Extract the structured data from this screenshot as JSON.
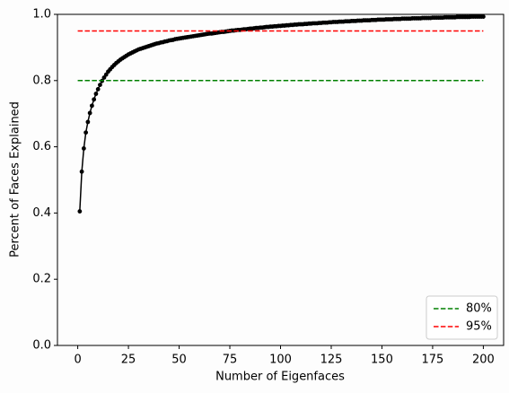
{
  "chart_data": {
    "type": "line",
    "xlabel": "Number of Eigenfaces",
    "ylabel": "Percent of Faces Explained",
    "xlim": [
      -10,
      210
    ],
    "ylim": [
      0,
      1
    ],
    "xticks": [
      0,
      25,
      50,
      75,
      100,
      125,
      150,
      175,
      200
    ],
    "yticks": [
      {
        "value": 0,
        "label": "0.0"
      },
      0.2,
      0.4,
      0.6,
      0.8,
      {
        "value": 1,
        "label": "1.0"
      }
    ],
    "legend": "lower right",
    "series": [
      {
        "color": "#000000",
        "style": "solid",
        "markers": true,
        "x": [
          1,
          2,
          3,
          4,
          5,
          6,
          7,
          8,
          9,
          10,
          11,
          12,
          13,
          14,
          15,
          16,
          17,
          18,
          19,
          20,
          21,
          22,
          23,
          24,
          25,
          26,
          27,
          28,
          29,
          30,
          31,
          32,
          33,
          34,
          35,
          36,
          37,
          38,
          39,
          40,
          41,
          42,
          43,
          44,
          45,
          46,
          47,
          48,
          49,
          50,
          51,
          52,
          53,
          54,
          55,
          56,
          57,
          58,
          59,
          60,
          61,
          62,
          63,
          64,
          65,
          66,
          67,
          68,
          69,
          70,
          71,
          72,
          73,
          74,
          75,
          76,
          77,
          78,
          79,
          80,
          81,
          82,
          83,
          84,
          85,
          86,
          87,
          88,
          89,
          90,
          91,
          92,
          93,
          94,
          95,
          96,
          97,
          98,
          99,
          100,
          101,
          102,
          103,
          104,
          105,
          106,
          107,
          108,
          109,
          110,
          111,
          112,
          113,
          114,
          115,
          116,
          117,
          118,
          119,
          120,
          121,
          122,
          123,
          124,
          125,
          126,
          127,
          128,
          129,
          130,
          131,
          132,
          133,
          134,
          135,
          136,
          137,
          138,
          139,
          140,
          141,
          142,
          143,
          144,
          145,
          146,
          147,
          148,
          149,
          150,
          151,
          152,
          153,
          154,
          155,
          156,
          157,
          158,
          159,
          160,
          161,
          162,
          163,
          164,
          165,
          166,
          167,
          168,
          169,
          170,
          171,
          172,
          173,
          174,
          175,
          176,
          177,
          178,
          179,
          180,
          181,
          182,
          183,
          184,
          185,
          186,
          187,
          188,
          189,
          190,
          191,
          192,
          193,
          194,
          195,
          196,
          197,
          198,
          199,
          200
        ],
        "values": [
          0.405,
          0.525,
          0.595,
          0.643,
          0.675,
          0.702,
          0.724,
          0.743,
          0.76,
          0.774,
          0.787,
          0.799,
          0.809,
          0.818,
          0.827,
          0.834,
          0.841,
          0.847,
          0.853,
          0.858,
          0.863,
          0.867,
          0.871,
          0.875,
          0.879,
          0.882,
          0.885,
          0.888,
          0.891,
          0.894,
          0.896,
          0.898,
          0.9,
          0.902,
          0.904,
          0.906,
          0.908,
          0.91,
          0.912,
          0.913,
          0.915,
          0.916,
          0.918,
          0.919,
          0.921,
          0.922,
          0.923,
          0.925,
          0.926,
          0.927,
          0.928,
          0.929,
          0.93,
          0.931,
          0.932,
          0.933,
          0.934,
          0.935,
          0.936,
          0.937,
          0.938,
          0.939,
          0.94,
          0.941,
          0.942,
          0.942,
          0.943,
          0.944,
          0.945,
          0.946,
          0.947,
          0.947,
          0.948,
          0.949,
          0.95,
          0.951,
          0.951,
          0.952,
          0.953,
          0.953,
          0.954,
          0.955,
          0.955,
          0.956,
          0.957,
          0.957,
          0.958,
          0.959,
          0.959,
          0.96,
          0.96,
          0.961,
          0.962,
          0.962,
          0.963,
          0.963,
          0.964,
          0.964,
          0.965,
          0.965,
          0.966,
          0.966,
          0.967,
          0.967,
          0.968,
          0.968,
          0.969,
          0.969,
          0.97,
          0.97,
          0.97,
          0.971,
          0.971,
          0.972,
          0.972,
          0.973,
          0.973,
          0.973,
          0.974,
          0.974,
          0.975,
          0.975,
          0.975,
          0.976,
          0.976,
          0.977,
          0.977,
          0.977,
          0.978,
          0.978,
          0.978,
          0.979,
          0.979,
          0.979,
          0.98,
          0.98,
          0.98,
          0.981,
          0.981,
          0.981,
          0.982,
          0.982,
          0.982,
          0.982,
          0.983,
          0.983,
          0.983,
          0.984,
          0.984,
          0.984,
          0.984,
          0.985,
          0.985,
          0.985,
          0.985,
          0.986,
          0.986,
          0.986,
          0.986,
          0.987,
          0.987,
          0.987,
          0.987,
          0.987,
          0.988,
          0.988,
          0.988,
          0.988,
          0.988,
          0.989,
          0.989,
          0.989,
          0.989,
          0.989,
          0.99,
          0.99,
          0.99,
          0.99,
          0.99,
          0.99,
          0.991,
          0.991,
          0.991,
          0.991,
          0.991,
          0.991,
          0.992,
          0.992,
          0.992,
          0.992,
          0.992,
          0.992,
          0.992,
          0.993,
          0.993,
          0.993,
          0.993,
          0.993,
          0.993,
          0.993
        ]
      },
      {
        "name": "80%",
        "color": "#008000",
        "style": "dashed",
        "markers": false,
        "x": [
          0,
          200
        ],
        "values": [
          0.8,
          0.8
        ]
      },
      {
        "name": "95%",
        "color": "#ff0000",
        "style": "dashed",
        "markers": false,
        "x": [
          0,
          200
        ],
        "values": [
          0.95,
          0.95
        ]
      }
    ]
  }
}
